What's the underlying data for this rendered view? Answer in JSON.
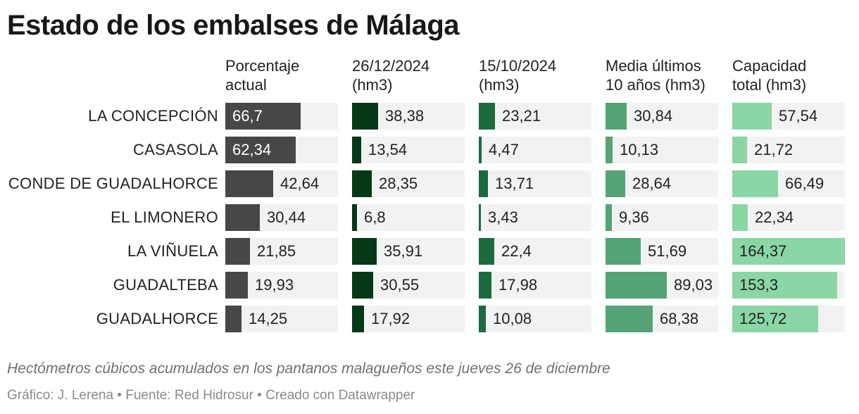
{
  "title": "Estado de los embalses de Málaga",
  "subtitle": "Hectómetros cúbicos acumulados en los pantanos malagueños este jueves 26 de diciembre",
  "footer": "Gráfico: J. Lerena • Fuente: Red Hidrosur • Creado con Datawrapper",
  "chart_data": {
    "type": "table",
    "title": "Estado de los embalses de Málaga",
    "rows": [
      "LA CONCEPCIÓN",
      "CASASOLA",
      "CONDE DE GUADALHORCE",
      "EL LIMONERO",
      "LA VIÑUELA",
      "GUADALTEBA",
      "GUADALHORCE"
    ],
    "columns": [
      {
        "header": "Porcentaje\nactual",
        "color": "#474747",
        "max": 100,
        "labels": [
          "66,7",
          "62,34",
          "42,64",
          "30,44",
          "21,85",
          "19,93",
          "14,25"
        ],
        "values": [
          66.7,
          62.34,
          42.64,
          30.44,
          21.85,
          19.93,
          14.25
        ]
      },
      {
        "header": "26/12/2024\n(hm3)",
        "color": "#053817",
        "max": 164.37,
        "labels": [
          "38,38",
          "13,54",
          "28,35",
          "6,8",
          "35,91",
          "30,55",
          "17,92"
        ],
        "values": [
          38.38,
          13.54,
          28.35,
          6.8,
          35.91,
          30.55,
          17.92
        ]
      },
      {
        "header": "15/10/2024\n(hm3)",
        "color": "#1b6b3f",
        "max": 164.37,
        "labels": [
          "23,21",
          "4,47",
          "13,71",
          "3,43",
          "22,4",
          "17,98",
          "10,08"
        ],
        "values": [
          23.21,
          4.47,
          13.71,
          3.43,
          22.4,
          17.98,
          10.08
        ]
      },
      {
        "header": "Media últimos\n10 años (hm3)",
        "color": "#55a376",
        "max": 164.37,
        "labels": [
          "30,84",
          "10,13",
          "28,64",
          "9,36",
          "51,69",
          "89,03",
          "68,38"
        ],
        "values": [
          30.84,
          10.13,
          28.64,
          9.36,
          51.69,
          89.03,
          68.38
        ]
      },
      {
        "header": "Capacidad\ntotal (hm3)",
        "color": "#8ad6a5",
        "max": 164.37,
        "labels": [
          "57,54",
          "21,72",
          "66,49",
          "22,34",
          "164,37",
          "153,3",
          "125,72"
        ],
        "values": [
          57.54,
          21.72,
          66.49,
          22.34,
          164.37,
          153.3,
          125.72
        ]
      }
    ]
  }
}
